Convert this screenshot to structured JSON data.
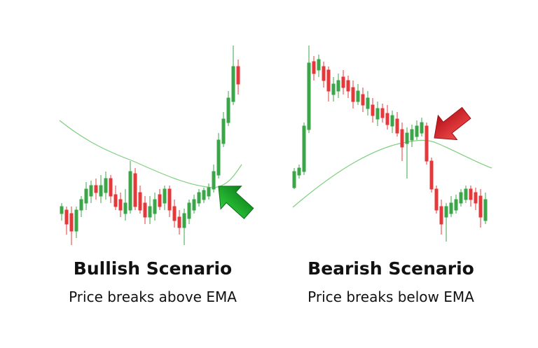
{
  "left": {
    "title": "Bullish Scenario",
    "subtitle": "Price breaks above EMA"
  },
  "right": {
    "title": "Bearish Scenario",
    "subtitle": "Price breaks below EMA"
  }
}
